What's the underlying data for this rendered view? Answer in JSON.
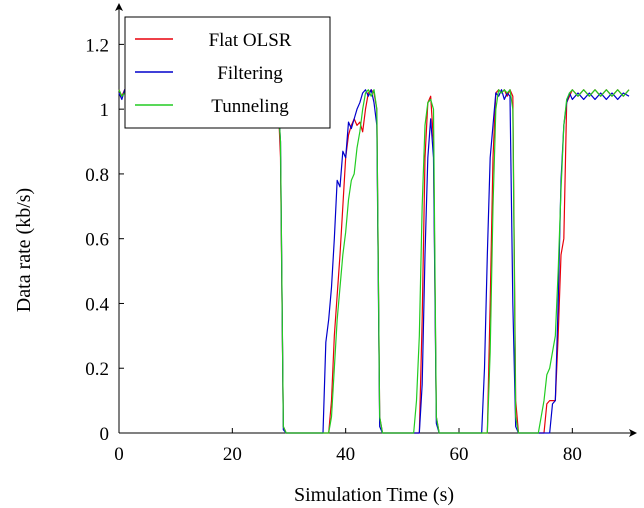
{
  "chart_data": {
    "type": "line",
    "title": "",
    "xlabel": "Simulation Time (s)",
    "ylabel": "Data rate (kb/s)",
    "xlim": [
      0,
      90
    ],
    "ylim": [
      0,
      1.3
    ],
    "x_ticks": [
      "0",
      "20",
      "40",
      "60",
      "80"
    ],
    "x_tick_values": [
      0,
      20,
      40,
      60,
      80
    ],
    "y_ticks": [
      "0",
      "0.2",
      "0.4",
      "0.6",
      "0.8",
      "1",
      "1.2"
    ],
    "y_tick_values": [
      0,
      0.2,
      0.4,
      0.6,
      0.8,
      1.0,
      1.2
    ],
    "grid": false,
    "legend_position": "top-left",
    "series": [
      {
        "name": "Flat OLSR",
        "color": "#e8000b",
        "points": [
          [
            0,
            1.06
          ],
          [
            0.5,
            1.04
          ],
          [
            1,
            1.06
          ],
          [
            1.5,
            1.03
          ],
          [
            2,
            1.06
          ],
          [
            2.5,
            1.04
          ],
          [
            3,
            1.06
          ],
          [
            3.5,
            1.04
          ],
          [
            4,
            1.06
          ],
          [
            28,
            1.06
          ],
          [
            28.5,
            0.85
          ],
          [
            29,
            0.02
          ],
          [
            29.5,
            0
          ],
          [
            37,
            0
          ],
          [
            37.5,
            0.1
          ],
          [
            38,
            0.3
          ],
          [
            39,
            0.55
          ],
          [
            40,
            0.85
          ],
          [
            40.5,
            0.92
          ],
          [
            41,
            0.95
          ],
          [
            41.5,
            0.97
          ],
          [
            42,
            0.95
          ],
          [
            42.5,
            0.96
          ],
          [
            43,
            0.93
          ],
          [
            43.5,
            1.0
          ],
          [
            44,
            1.05
          ],
          [
            44.5,
            1.06
          ],
          [
            45,
            1.05
          ],
          [
            45.5,
            1.0
          ],
          [
            46,
            0.05
          ],
          [
            46.5,
            0
          ],
          [
            53,
            0
          ],
          [
            53.5,
            0.35
          ],
          [
            54,
            0.85
          ],
          [
            54.5,
            1.02
          ],
          [
            55,
            1.04
          ],
          [
            55.5,
            0.9
          ],
          [
            56,
            0.05
          ],
          [
            56.5,
            0
          ],
          [
            65,
            0
          ],
          [
            65.5,
            0.4
          ],
          [
            66,
            0.85
          ],
          [
            66.5,
            1.05
          ],
          [
            67,
            1.06
          ],
          [
            67.5,
            1.05
          ],
          [
            68,
            1.06
          ],
          [
            68.5,
            1.04
          ],
          [
            69,
            1.06
          ],
          [
            69.5,
            1.04
          ],
          [
            70,
            0.1
          ],
          [
            70.5,
            0
          ],
          [
            75,
            0
          ],
          [
            75.5,
            0.09
          ],
          [
            76,
            0.1
          ],
          [
            76.5,
            0.1
          ],
          [
            77,
            0.1
          ],
          [
            77.5,
            0.3
          ],
          [
            78,
            0.55
          ],
          [
            78.5,
            0.6
          ],
          [
            79,
            1.02
          ],
          [
            79.5,
            1.04
          ],
          [
            80,
            1.06
          ],
          [
            81,
            1.04
          ],
          [
            82,
            1.06
          ],
          [
            83,
            1.04
          ],
          [
            84,
            1.06
          ],
          [
            85,
            1.04
          ],
          [
            86,
            1.06
          ],
          [
            87,
            1.04
          ],
          [
            88,
            1.06
          ],
          [
            89,
            1.04
          ],
          [
            90,
            1.06
          ]
        ]
      },
      {
        "name": "Filtering",
        "color": "#0000cc",
        "points": [
          [
            0,
            1.05
          ],
          [
            0.5,
            1.03
          ],
          [
            1,
            1.06
          ],
          [
            1.5,
            1.04
          ],
          [
            2,
            1.05
          ],
          [
            2.5,
            1.03
          ],
          [
            3,
            1.06
          ],
          [
            3.5,
            1.04
          ],
          [
            4,
            1.05
          ],
          [
            28,
            1.05
          ],
          [
            28.5,
            0.9
          ],
          [
            29,
            0.01
          ],
          [
            29.5,
            0
          ],
          [
            36,
            0
          ],
          [
            36.5,
            0.28
          ],
          [
            37,
            0.35
          ],
          [
            37.5,
            0.45
          ],
          [
            38,
            0.6
          ],
          [
            38.5,
            0.78
          ],
          [
            39,
            0.76
          ],
          [
            39.5,
            0.87
          ],
          [
            40,
            0.85
          ],
          [
            40.5,
            0.96
          ],
          [
            41,
            0.94
          ],
          [
            41.5,
            0.97
          ],
          [
            42,
            1.0
          ],
          [
            42.5,
            1.02
          ],
          [
            43,
            1.05
          ],
          [
            43.5,
            1.06
          ],
          [
            44,
            1.04
          ],
          [
            44.5,
            1.06
          ],
          [
            45,
            1.02
          ],
          [
            45.5,
            0.95
          ],
          [
            46,
            0.02
          ],
          [
            46.5,
            0
          ],
          [
            53,
            0
          ],
          [
            53.5,
            0.15
          ],
          [
            54,
            0.55
          ],
          [
            54.5,
            0.85
          ],
          [
            55,
            0.97
          ],
          [
            55.5,
            0.85
          ],
          [
            56,
            0.03
          ],
          [
            56.5,
            0
          ],
          [
            64,
            0
          ],
          [
            64.5,
            0.2
          ],
          [
            65,
            0.55
          ],
          [
            65.5,
            0.85
          ],
          [
            66,
            0.95
          ],
          [
            66.5,
            1.05
          ],
          [
            67,
            1.04
          ],
          [
            67.5,
            1.06
          ],
          [
            68,
            1.03
          ],
          [
            68.5,
            1.05
          ],
          [
            69,
            1.04
          ],
          [
            69.5,
            0.4
          ],
          [
            70,
            0.02
          ],
          [
            70.5,
            0
          ],
          [
            76,
            0
          ],
          [
            76.5,
            0.09
          ],
          [
            77,
            0.1
          ],
          [
            77.5,
            0.4
          ],
          [
            78,
            0.78
          ],
          [
            78.5,
            0.95
          ],
          [
            79,
            1.02
          ],
          [
            79.5,
            1.05
          ],
          [
            80,
            1.03
          ],
          [
            81,
            1.05
          ],
          [
            82,
            1.03
          ],
          [
            83,
            1.05
          ],
          [
            84,
            1.03
          ],
          [
            85,
            1.05
          ],
          [
            86,
            1.03
          ],
          [
            87,
            1.05
          ],
          [
            88,
            1.03
          ],
          [
            89,
            1.05
          ],
          [
            90,
            1.04
          ]
        ]
      },
      {
        "name": "Tunneling",
        "color": "#22cc22",
        "points": [
          [
            0,
            1.06
          ],
          [
            0.5,
            1.04
          ],
          [
            1,
            1.05
          ],
          [
            1.5,
            1.03
          ],
          [
            2,
            1.06
          ],
          [
            2.5,
            1.04
          ],
          [
            3,
            1.05
          ],
          [
            3.5,
            1.03
          ],
          [
            4,
            1.06
          ],
          [
            28,
            1.04
          ],
          [
            28.5,
            0.9
          ],
          [
            29,
            0.02
          ],
          [
            29.5,
            0
          ],
          [
            37,
            0
          ],
          [
            37.5,
            0.05
          ],
          [
            38,
            0.2
          ],
          [
            38.5,
            0.35
          ],
          [
            39,
            0.45
          ],
          [
            39.5,
            0.55
          ],
          [
            40,
            0.62
          ],
          [
            40.5,
            0.72
          ],
          [
            41,
            0.78
          ],
          [
            41.5,
            0.8
          ],
          [
            42,
            0.88
          ],
          [
            42.5,
            0.93
          ],
          [
            43,
            1.0
          ],
          [
            43.5,
            1.05
          ],
          [
            44,
            1.06
          ],
          [
            44.5,
            1.04
          ],
          [
            45,
            1.06
          ],
          [
            45.5,
            1.0
          ],
          [
            46,
            0.05
          ],
          [
            46.5,
            0
          ],
          [
            52,
            0
          ],
          [
            52.5,
            0.1
          ],
          [
            53,
            0.3
          ],
          [
            53.5,
            0.7
          ],
          [
            54,
            0.95
          ],
          [
            54.5,
            1.02
          ],
          [
            55,
            1.03
          ],
          [
            55.5,
            1.0
          ],
          [
            56,
            0.05
          ],
          [
            56.5,
            0
          ],
          [
            65,
            0
          ],
          [
            65.5,
            0.25
          ],
          [
            66,
            0.7
          ],
          [
            66.5,
            1.0
          ],
          [
            67,
            1.06
          ],
          [
            67.5,
            1.05
          ],
          [
            68,
            1.06
          ],
          [
            68.5,
            1.05
          ],
          [
            69,
            1.06
          ],
          [
            69.5,
            1.0
          ],
          [
            70,
            0.05
          ],
          [
            70.5,
            0
          ],
          [
            74,
            0
          ],
          [
            74.5,
            0.05
          ],
          [
            75,
            0.1
          ],
          [
            75.5,
            0.18
          ],
          [
            76,
            0.2
          ],
          [
            76.5,
            0.25
          ],
          [
            77,
            0.3
          ],
          [
            77.5,
            0.5
          ],
          [
            78,
            0.75
          ],
          [
            78.5,
            0.95
          ],
          [
            79,
            1.03
          ],
          [
            79.5,
            1.05
          ],
          [
            80,
            1.06
          ],
          [
            81,
            1.04
          ],
          [
            82,
            1.06
          ],
          [
            83,
            1.04
          ],
          [
            84,
            1.06
          ],
          [
            85,
            1.04
          ],
          [
            86,
            1.06
          ],
          [
            87,
            1.04
          ],
          [
            88,
            1.06
          ],
          [
            89,
            1.04
          ],
          [
            90,
            1.06
          ]
        ]
      }
    ]
  }
}
